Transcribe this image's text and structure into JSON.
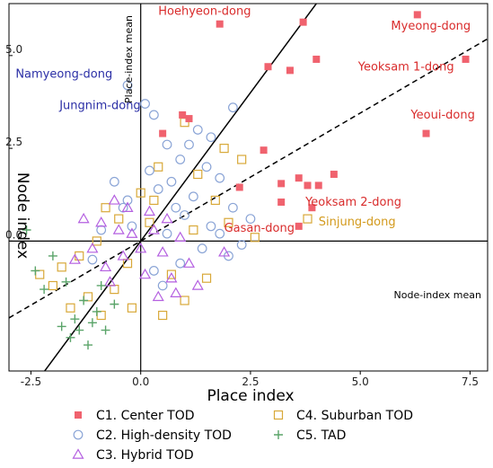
{
  "chart_data": {
    "type": "scatter",
    "xlabel": "Place index",
    "ylabel": "Node index",
    "xlim": [
      -3.0,
      7.9
    ],
    "ylim": [
      -3.5,
      6.4
    ],
    "xticks": [
      "-2.5",
      "0.0",
      "2.5",
      "5.0",
      "7.5"
    ],
    "xtick_values": [
      -2.5,
      0.0,
      2.5,
      5.0,
      7.5
    ],
    "yticks": [
      "0.0",
      "2.5",
      "5.0"
    ],
    "ytick_values": [
      0.0,
      2.5,
      5.0
    ],
    "grid": false,
    "legend_position": "bottom",
    "mean_labels": {
      "vertical": "Place-index mean",
      "horizontal": "Node-index mean"
    },
    "reference_lines": [
      {
        "style": "solid",
        "slope": 1.6,
        "intercept": 0.0
      },
      {
        "style": "dashed",
        "slope": 0.69,
        "intercept": 0.0
      }
    ],
    "series": [
      {
        "name": "C1. Center TOD",
        "marker": "square-filled",
        "color": "#f0626e",
        "points": [
          [
            1.8,
            5.85
          ],
          [
            3.7,
            5.9
          ],
          [
            6.3,
            6.1
          ],
          [
            7.4,
            4.9
          ],
          [
            2.9,
            4.7
          ],
          [
            3.4,
            4.6
          ],
          [
            4.0,
            4.9
          ],
          [
            0.95,
            3.4
          ],
          [
            1.1,
            3.3
          ],
          [
            0.5,
            2.9
          ],
          [
            2.8,
            2.45
          ],
          [
            6.5,
            2.9
          ],
          [
            4.4,
            1.8
          ],
          [
            3.6,
            1.7
          ],
          [
            3.8,
            1.5
          ],
          [
            4.05,
            1.5
          ],
          [
            3.2,
            1.55
          ],
          [
            2.25,
            1.45
          ],
          [
            3.2,
            1.05
          ],
          [
            3.9,
            0.9
          ],
          [
            3.6,
            0.4
          ]
        ]
      },
      {
        "name": "C2. High-density TOD",
        "marker": "circle",
        "color": "#8aa4d6",
        "points": [
          [
            -0.3,
            4.2
          ],
          [
            2.1,
            3.6
          ],
          [
            0.1,
            3.7
          ],
          [
            0.3,
            3.4
          ],
          [
            1.3,
            3.0
          ],
          [
            0.6,
            2.6
          ],
          [
            0.9,
            2.2
          ],
          [
            1.5,
            2.0
          ],
          [
            1.8,
            1.7
          ],
          [
            0.2,
            1.9
          ],
          [
            -0.6,
            1.6
          ],
          [
            1.2,
            1.2
          ],
          [
            2.1,
            0.9
          ],
          [
            2.5,
            0.6
          ],
          [
            1.6,
            0.4
          ],
          [
            0.8,
            0.9
          ],
          [
            -0.4,
            0.9
          ],
          [
            0.4,
            1.4
          ],
          [
            1.0,
            0.7
          ],
          [
            -0.2,
            0.4
          ],
          [
            0.6,
            0.2
          ],
          [
            1.4,
            -0.2
          ],
          [
            2.0,
            -0.4
          ],
          [
            0.3,
            -0.8
          ],
          [
            -0.9,
            0.3
          ],
          [
            -1.1,
            -0.5
          ],
          [
            1.1,
            2.6
          ],
          [
            1.6,
            2.8
          ],
          [
            0.7,
            1.6
          ],
          [
            -0.3,
            1.1
          ],
          [
            0.9,
            -0.6
          ],
          [
            0.5,
            -1.2
          ],
          [
            1.8,
            0.2
          ],
          [
            2.3,
            -0.1
          ]
        ]
      },
      {
        "name": "C3. Hybrid TOD",
        "marker": "triangle",
        "color": "#b45fe0",
        "points": [
          [
            -0.6,
            1.1
          ],
          [
            -0.9,
            0.5
          ],
          [
            -1.3,
            0.6
          ],
          [
            -0.2,
            0.2
          ],
          [
            0.3,
            0.3
          ],
          [
            0.5,
            -0.3
          ],
          [
            -0.4,
            -0.4
          ],
          [
            -0.8,
            -0.7
          ],
          [
            0.1,
            -0.9
          ],
          [
            0.7,
            -1.0
          ],
          [
            1.1,
            -0.6
          ],
          [
            0.9,
            0.1
          ],
          [
            -0.3,
            0.9
          ],
          [
            0.2,
            0.8
          ],
          [
            -1.1,
            -0.2
          ],
          [
            -1.5,
            -0.5
          ],
          [
            0.4,
            -1.5
          ],
          [
            1.3,
            -1.2
          ],
          [
            -0.7,
            -1.1
          ],
          [
            0.0,
            -0.2
          ],
          [
            1.9,
            -0.3
          ],
          [
            0.6,
            0.6
          ],
          [
            -0.5,
            0.3
          ],
          [
            0.8,
            -1.4
          ]
        ]
      },
      {
        "name": "C4. Suburban TOD",
        "marker": "square-open",
        "color": "#d8a838",
        "points": [
          [
            1.0,
            3.2
          ],
          [
            1.9,
            2.5
          ],
          [
            2.3,
            2.2
          ],
          [
            0.4,
            2.0
          ],
          [
            1.3,
            1.8
          ],
          [
            0.0,
            1.3
          ],
          [
            -0.8,
            0.9
          ],
          [
            1.7,
            1.1
          ],
          [
            2.0,
            0.5
          ],
          [
            3.8,
            0.6
          ],
          [
            2.6,
            0.1
          ],
          [
            -0.5,
            0.6
          ],
          [
            -1.0,
            0.0
          ],
          [
            -1.4,
            -0.4
          ],
          [
            -1.8,
            -0.7
          ],
          [
            -0.6,
            -1.3
          ],
          [
            -1.2,
            -1.5
          ],
          [
            -0.2,
            -1.8
          ],
          [
            0.7,
            -0.9
          ],
          [
            1.5,
            -1.0
          ],
          [
            0.5,
            -2.0
          ],
          [
            -2.0,
            -1.2
          ],
          [
            -0.9,
            -2.0
          ],
          [
            1.0,
            -1.6
          ],
          [
            0.2,
            0.5
          ],
          [
            -0.3,
            -0.6
          ],
          [
            1.2,
            0.3
          ],
          [
            0.3,
            1.1
          ],
          [
            -1.6,
            -1.8
          ],
          [
            -2.3,
            -0.9
          ]
        ]
      },
      {
        "name": "C5. TAD",
        "marker": "plus",
        "color": "#5aa469",
        "points": [
          [
            -2.6,
            0.3
          ],
          [
            -2.0,
            -0.4
          ],
          [
            -1.7,
            -1.1
          ],
          [
            -1.3,
            -1.6
          ],
          [
            -1.0,
            -1.9
          ],
          [
            -1.5,
            -2.1
          ],
          [
            -0.8,
            -2.4
          ],
          [
            -1.2,
            -2.8
          ],
          [
            -1.8,
            -2.3
          ],
          [
            -0.6,
            -1.7
          ],
          [
            -2.2,
            -1.3
          ],
          [
            -1.6,
            -2.6
          ],
          [
            -1.1,
            -2.2
          ],
          [
            -0.9,
            -1.2
          ],
          [
            -2.4,
            -0.8
          ],
          [
            -1.4,
            -2.4
          ]
        ]
      }
    ],
    "annotations": [
      {
        "text": "Hoehyeon-dong",
        "x": 0.4,
        "y": 6.1,
        "series": "C1. Center TOD"
      },
      {
        "text": "Myeong-dong",
        "x": 5.7,
        "y": 5.7,
        "series": "C1. Center TOD"
      },
      {
        "text": "Yeoksam 1-dong",
        "x": 4.95,
        "y": 4.6,
        "series": "C1. Center TOD"
      },
      {
        "text": "Yeoui-dong",
        "x": 6.15,
        "y": 3.3,
        "series": "C1. Center TOD"
      },
      {
        "text": "Yeoksam 2-dong",
        "x": 3.75,
        "y": 0.95,
        "series": "C1. Center TOD"
      },
      {
        "text": "Gasan-dong",
        "x": 1.9,
        "y": 0.25,
        "series": "C1. Center TOD"
      },
      {
        "text": "Sinjung-dong",
        "x": 4.05,
        "y": 0.42,
        "series": "C4. Suburban TOD"
      },
      {
        "text": "Namyeong-dong",
        "x": -2.85,
        "y": 4.4,
        "series": "C2. High-density TOD"
      },
      {
        "text": "Jungnim-dong",
        "x": -1.85,
        "y": 3.55,
        "series": "C2. High-density TOD"
      }
    ]
  }
}
